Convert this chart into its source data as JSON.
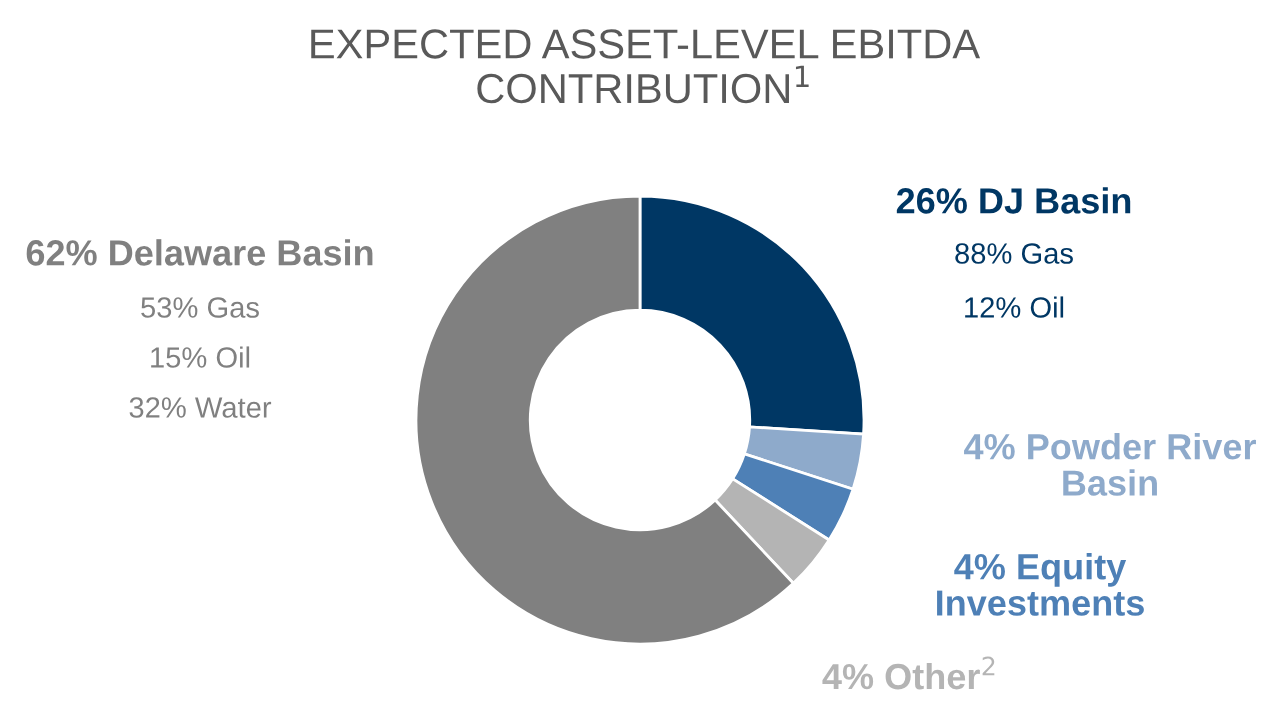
{
  "chart_data": {
    "type": "donut",
    "title": "EXPECTED ASSET-LEVEL EBITDA\nCONTRIBUTION$^{1}$",
    "categories": [
      "26% DJ Basin",
      "4% Powder River\nBasin",
      "4% Equity\nInvestments",
      "4% Other$^{2}$",
      "62% Delaware Basin"
    ],
    "values": [
      26,
      4,
      4,
      4,
      62
    ],
    "colors": [
      "#003764",
      "#8eaacb",
      "#4e80b6",
      "#b4b4b4",
      "#808080"
    ],
    "annotations": [
      "88% Gas",
      "12% Oil",
      "53% Gas",
      "15% Oil",
      "32% Water"
    ],
    "legend": false
  }
}
